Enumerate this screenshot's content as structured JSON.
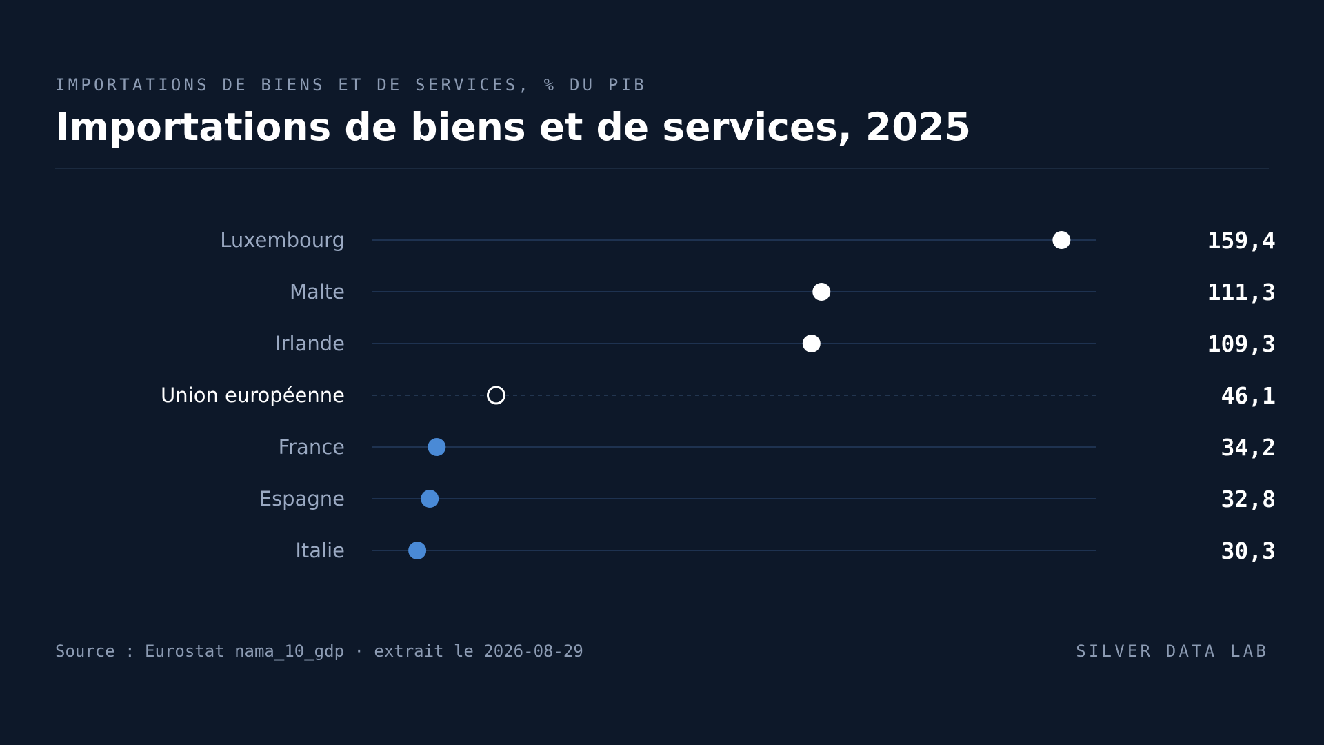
{
  "header": {
    "eyebrow": "IMPORTATIONS DE BIENS ET DE SERVICES, % DU PIB",
    "title": "Importations de biens et de services, 2025"
  },
  "footer": {
    "source": "Source : Eurostat nama_10_gdp · extrait le 2026-08-29",
    "brand": "SILVER DATA LAB"
  },
  "colors": {
    "background": "#0d1829",
    "track": "#1e3250",
    "label": "#9aa9c2",
    "label_highlight": "#ffffff",
    "dot_high": "#ffffff",
    "dot_low": "#4a8ad6",
    "value": "#ffffff"
  },
  "chart_data": {
    "type": "dot",
    "unit": "% du PIB",
    "xlim": [
      21.3,
      166.4
    ],
    "rows": [
      {
        "label": "Luxembourg",
        "value": 159.4,
        "display": "159,4",
        "style": "high"
      },
      {
        "label": "Malte",
        "value": 111.3,
        "display": "111,3",
        "style": "high"
      },
      {
        "label": "Irlande",
        "value": 109.3,
        "display": "109,3",
        "style": "high"
      },
      {
        "label": "Union européenne",
        "value": 46.1,
        "display": "46,1",
        "style": "reference"
      },
      {
        "label": "France",
        "value": 34.2,
        "display": "34,2",
        "style": "low"
      },
      {
        "label": "Espagne",
        "value": 32.8,
        "display": "32,8",
        "style": "low"
      },
      {
        "label": "Italie",
        "value": 30.3,
        "display": "30,3",
        "style": "low"
      }
    ]
  }
}
